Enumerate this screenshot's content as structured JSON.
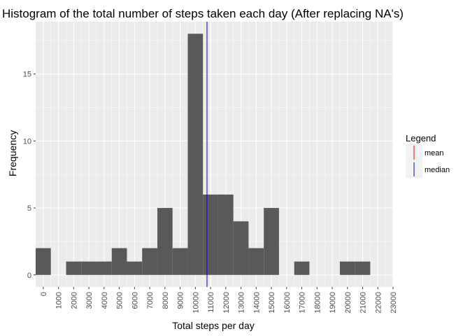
{
  "chart_data": {
    "type": "bar",
    "title": "Histogram of the total number of steps taken each day (After replacing NA's)",
    "xlabel": "Total steps per day",
    "ylabel": "Frequency",
    "bin_width": 1000,
    "bins": [
      {
        "start": 0,
        "end": 1000,
        "count": 2
      },
      {
        "start": 1000,
        "end": 2000,
        "count": 0
      },
      {
        "start": 2000,
        "end": 3000,
        "count": 1
      },
      {
        "start": 3000,
        "end": 4000,
        "count": 1
      },
      {
        "start": 4000,
        "end": 5000,
        "count": 1
      },
      {
        "start": 5000,
        "end": 6000,
        "count": 2
      },
      {
        "start": 6000,
        "end": 7000,
        "count": 1
      },
      {
        "start": 7000,
        "end": 8000,
        "count": 2
      },
      {
        "start": 8000,
        "end": 9000,
        "count": 5
      },
      {
        "start": 9000,
        "end": 10000,
        "count": 2
      },
      {
        "start": 10000,
        "end": 11000,
        "count": 18
      },
      {
        "start": 11000,
        "end": 12000,
        "count": 6
      },
      {
        "start": 12000,
        "end": 13000,
        "count": 6
      },
      {
        "start": 13000,
        "end": 14000,
        "count": 4
      },
      {
        "start": 14000,
        "end": 15000,
        "count": 2
      },
      {
        "start": 15000,
        "end": 16000,
        "count": 5
      },
      {
        "start": 16000,
        "end": 17000,
        "count": 0
      },
      {
        "start": 17000,
        "end": 18000,
        "count": 1
      },
      {
        "start": 18000,
        "end": 19000,
        "count": 0
      },
      {
        "start": 19000,
        "end": 20000,
        "count": 0
      },
      {
        "start": 20000,
        "end": 21000,
        "count": 1
      },
      {
        "start": 21000,
        "end": 22000,
        "count": 1
      }
    ],
    "x_ticks": [
      0,
      1000,
      2000,
      3000,
      4000,
      5000,
      6000,
      7000,
      8000,
      9000,
      10000,
      11000,
      12000,
      13000,
      14000,
      15000,
      16000,
      17000,
      18000,
      19000,
      20000,
      21000,
      22000,
      23000
    ],
    "y_ticks": [
      0,
      5,
      10,
      15
    ],
    "xlim": [
      -500,
      23000
    ],
    "ylim": [
      -0.9,
      18.9
    ],
    "mean": 10766,
    "median": 10766,
    "legend": {
      "title": "Legend",
      "placement": "right",
      "entries": [
        {
          "label": "mean",
          "color": "#ff0000"
        },
        {
          "label": "median",
          "color": "#0000ff"
        }
      ]
    },
    "colors": {
      "bar": "#595959",
      "panel_background": "#ebebeb",
      "grid": "#ffffff",
      "mean": "#ff0000",
      "median": "#0000ff"
    },
    "grid": true
  }
}
